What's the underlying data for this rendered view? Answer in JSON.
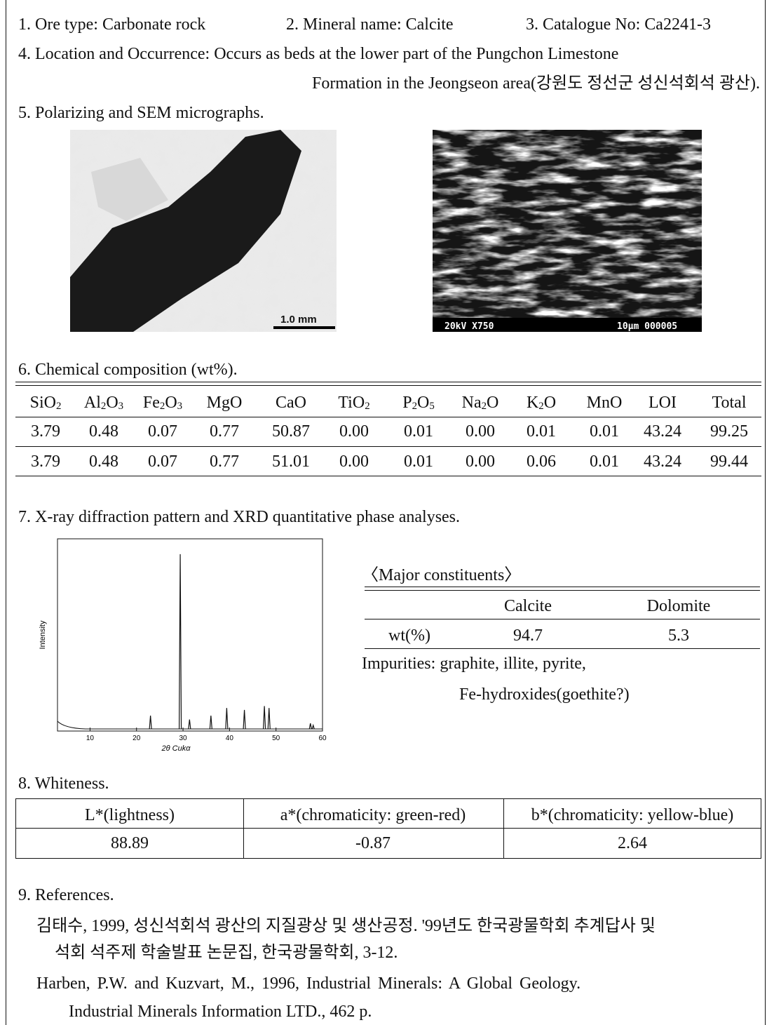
{
  "header": {
    "ore_type": "1. Ore type: Carbonate rock",
    "mineral_name": "2. Mineral name: Calcite",
    "catalogue_no": "3. Catalogue No: Ca2241-3",
    "location_line1": "4. Location and Occurrence: Occurs as beds at the lower part of the Pungchon Limestone",
    "location_line2": "Formation in the Jeongseon area(강원도 정선군 성신석회석 광산)."
  },
  "micrographs": {
    "title": "5. Polarizing and SEM micrographs.",
    "polarizing_scale": "1.0 mm",
    "sem_left": "20kV X750",
    "sem_right": "10μm 000005"
  },
  "chemical_table": {
    "title": "6. Chemical composition (wt%).",
    "header": [
      "SiO2",
      "Al2O3",
      "Fe2O3",
      "MgO",
      "CaO",
      "TiO2",
      "P2O5",
      "Na2O",
      "K2O",
      "MnO",
      "LOI",
      "Total"
    ],
    "rows": [
      [
        "3.79",
        "0.48",
        "0.07",
        "0.77",
        "50.87",
        "0.00",
        "0.01",
        "0.00",
        "0.01",
        "0.01",
        "43.24",
        "99.25"
      ],
      [
        "3.79",
        "0.48",
        "0.07",
        "0.77",
        "51.01",
        "0.00",
        "0.01",
        "0.00",
        "0.06",
        "0.01",
        "43.24",
        "99.44"
      ]
    ]
  },
  "xrd": {
    "title": "7. X-ray diffraction pattern and XRD quantitative phase analyses.",
    "x_label": "2θ Cukα",
    "y_label": "Intensity",
    "xlim": [
      3,
      60
    ],
    "xticks": [
      10,
      20,
      30,
      40,
      50,
      60
    ],
    "ylim": [
      0,
      100
    ],
    "peaks": {
      "x": [
        23.0,
        29.4,
        31.4,
        36.0,
        39.4,
        43.2,
        47.5,
        48.5,
        57.4,
        58.0
      ],
      "y": [
        8,
        92,
        6,
        8,
        12,
        11,
        13,
        12,
        4,
        3
      ]
    }
  },
  "phase_table": {
    "title": "〈Major constituents〉",
    "header": [
      "Calcite",
      "Dolomite"
    ],
    "row_label": "wt(%)",
    "values": [
      "94.7",
      "5.3"
    ],
    "impurities_line1": "Impurities: graphite, illite, pyrite,",
    "impurities_line2": "Fe-hydroxides(goethite?)"
  },
  "whiteness": {
    "title": "8. Whiteness.",
    "header": [
      "L*(lightness)",
      "a*(chromaticity: green-red)",
      "b*(chromaticity: yellow-blue)"
    ],
    "values": [
      "88.89",
      "-0.87",
      "2.64"
    ]
  },
  "references": {
    "title": "9. References.",
    "items": [
      [
        "김태수, 1999, 성신석회석 광산의 지질광상 및 생산공정. '99년도 한국광물학회 추계답사 및",
        "석회 석주제 학술발표 논문집, 한국광물학회, 3-12."
      ],
      [
        "Harben, P.W. and  Kuzvart, M., 1996, Industrial Minerals: A Global  Geology.",
        "Industrial Minerals Information LTD., 462 p."
      ]
    ]
  }
}
